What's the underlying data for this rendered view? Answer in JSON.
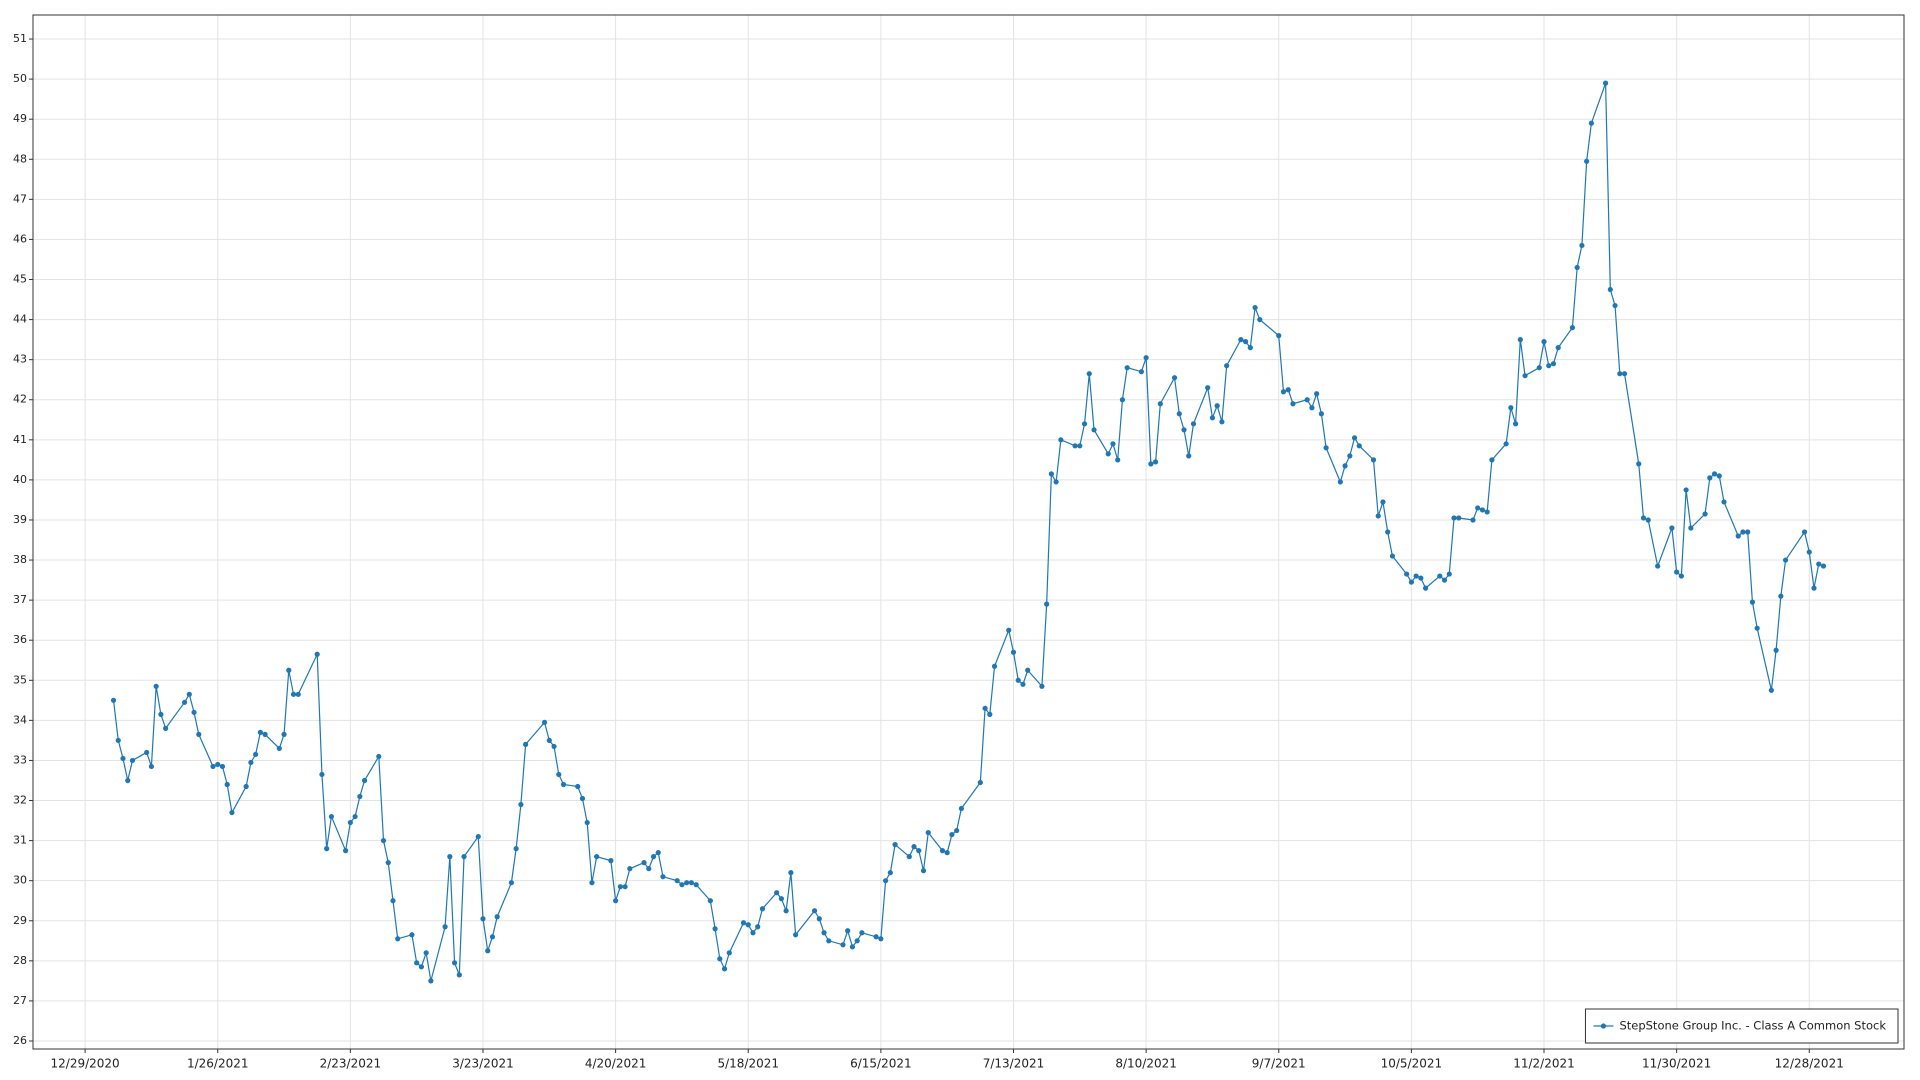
{
  "chart_data": {
    "type": "line",
    "x": [
      "1/4/2021",
      "1/5/2021",
      "1/6/2021",
      "1/7/2021",
      "1/8/2021",
      "1/11/2021",
      "1/12/2021",
      "1/13/2021",
      "1/14/2021",
      "1/15/2021",
      "1/19/2021",
      "1/20/2021",
      "1/21/2021",
      "1/22/2021",
      "1/25/2021",
      "1/26/2021",
      "1/27/2021",
      "1/28/2021",
      "1/29/2021",
      "2/1/2021",
      "2/2/2021",
      "2/3/2021",
      "2/4/2021",
      "2/5/2021",
      "2/8/2021",
      "2/9/2021",
      "2/10/2021",
      "2/11/2021",
      "2/12/2021",
      "2/16/2021",
      "2/17/2021",
      "2/18/2021",
      "2/19/2021",
      "2/22/2021",
      "2/23/2021",
      "2/24/2021",
      "2/25/2021",
      "2/26/2021",
      "3/1/2021",
      "3/2/2021",
      "3/3/2021",
      "3/4/2021",
      "3/5/2021",
      "3/8/2021",
      "3/9/2021",
      "3/10/2021",
      "3/11/2021",
      "3/12/2021",
      "3/15/2021",
      "3/16/2021",
      "3/17/2021",
      "3/18/2021",
      "3/19/2021",
      "3/22/2021",
      "3/23/2021",
      "3/24/2021",
      "3/25/2021",
      "3/26/2021",
      "3/29/2021",
      "3/30/2021",
      "3/31/2021",
      "4/1/2021",
      "4/5/2021",
      "4/6/2021",
      "4/7/2021",
      "4/8/2021",
      "4/9/2021",
      "4/12/2021",
      "4/13/2021",
      "4/14/2021",
      "4/15/2021",
      "4/16/2021",
      "4/19/2021",
      "4/20/2021",
      "4/21/2021",
      "4/22/2021",
      "4/23/2021",
      "4/26/2021",
      "4/27/2021",
      "4/28/2021",
      "4/29/2021",
      "4/30/2021",
      "5/3/2021",
      "5/4/2021",
      "5/5/2021",
      "5/6/2021",
      "5/7/2021",
      "5/10/2021",
      "5/11/2021",
      "5/12/2021",
      "5/13/2021",
      "5/14/2021",
      "5/17/2021",
      "5/18/2021",
      "5/19/2021",
      "5/20/2021",
      "5/21/2021",
      "5/24/2021",
      "5/25/2021",
      "5/26/2021",
      "5/27/2021",
      "5/28/2021",
      "6/1/2021",
      "6/2/2021",
      "6/3/2021",
      "6/4/2021",
      "6/7/2021",
      "6/8/2021",
      "6/9/2021",
      "6/10/2021",
      "6/11/2021",
      "6/14/2021",
      "6/15/2021",
      "6/16/2021",
      "6/17/2021",
      "6/18/2021",
      "6/21/2021",
      "6/22/2021",
      "6/23/2021",
      "6/24/2021",
      "6/25/2021",
      "6/28/2021",
      "6/29/2021",
      "6/30/2021",
      "7/1/2021",
      "7/2/2021",
      "7/6/2021",
      "7/7/2021",
      "7/8/2021",
      "7/9/2021",
      "7/12/2021",
      "7/13/2021",
      "7/14/2021",
      "7/15/2021",
      "7/16/2021",
      "7/19/2021",
      "7/20/2021",
      "7/21/2021",
      "7/22/2021",
      "7/23/2021",
      "7/26/2021",
      "7/27/2021",
      "7/28/2021",
      "7/29/2021",
      "7/30/2021",
      "8/2/2021",
      "8/3/2021",
      "8/4/2021",
      "8/5/2021",
      "8/6/2021",
      "8/9/2021",
      "8/10/2021",
      "8/11/2021",
      "8/12/2021",
      "8/13/2021",
      "8/16/2021",
      "8/17/2021",
      "8/18/2021",
      "8/19/2021",
      "8/20/2021",
      "8/23/2021",
      "8/24/2021",
      "8/25/2021",
      "8/26/2021",
      "8/27/2021",
      "8/30/2021",
      "8/31/2021",
      "9/1/2021",
      "9/2/2021",
      "9/3/2021",
      "9/7/2021",
      "9/8/2021",
      "9/9/2021",
      "9/10/2021",
      "9/13/2021",
      "9/14/2021",
      "9/15/2021",
      "9/16/2021",
      "9/17/2021",
      "9/20/2021",
      "9/21/2021",
      "9/22/2021",
      "9/23/2021",
      "9/24/2021",
      "9/27/2021",
      "9/28/2021",
      "9/29/2021",
      "9/30/2021",
      "10/1/2021",
      "10/4/2021",
      "10/5/2021",
      "10/6/2021",
      "10/7/2021",
      "10/8/2021",
      "10/11/2021",
      "10/12/2021",
      "10/13/2021",
      "10/14/2021",
      "10/15/2021",
      "10/18/2021",
      "10/19/2021",
      "10/20/2021",
      "10/21/2021",
      "10/22/2021",
      "10/25/2021",
      "10/26/2021",
      "10/27/2021",
      "10/28/2021",
      "10/29/2021",
      "11/1/2021",
      "11/2/2021",
      "11/3/2021",
      "11/4/2021",
      "11/5/2021",
      "11/8/2021",
      "11/9/2021",
      "11/10/2021",
      "11/11/2021",
      "11/12/2021",
      "11/15/2021",
      "11/16/2021",
      "11/17/2021",
      "11/18/2021",
      "11/19/2021",
      "11/22/2021",
      "11/23/2021",
      "11/24/2021",
      "11/26/2021",
      "11/29/2021",
      "11/30/2021",
      "12/1/2021",
      "12/2/2021",
      "12/3/2021",
      "12/6/2021",
      "12/7/2021",
      "12/8/2021",
      "12/9/2021",
      "12/10/2021",
      "12/13/2021",
      "12/14/2021",
      "12/15/2021",
      "12/16/2021",
      "12/17/2021",
      "12/20/2021",
      "12/21/2021",
      "12/22/2021",
      "12/23/2021",
      "12/27/2021",
      "12/28/2021",
      "12/29/2021",
      "12/30/2021",
      "12/31/2021"
    ],
    "series": [
      {
        "name": "StepStone Group Inc. - Class A Common Stock",
        "color": "#1f77b4",
        "values": [
          34.5,
          33.5,
          33.05,
          32.5,
          33.0,
          33.2,
          32.85,
          34.85,
          34.15,
          33.8,
          34.45,
          34.65,
          34.2,
          33.65,
          32.85,
          32.9,
          32.85,
          32.4,
          31.7,
          32.35,
          32.95,
          33.15,
          33.7,
          33.65,
          33.3,
          33.65,
          35.25,
          34.65,
          34.65,
          35.65,
          32.65,
          30.8,
          31.6,
          30.75,
          31.45,
          31.6,
          32.1,
          32.5,
          33.1,
          31.0,
          30.45,
          29.5,
          28.55,
          28.65,
          27.95,
          27.85,
          28.2,
          27.5,
          28.85,
          30.6,
          27.95,
          27.65,
          30.6,
          31.1,
          29.05,
          28.25,
          28.6,
          29.1,
          29.95,
          30.8,
          31.9,
          33.4,
          33.95,
          33.5,
          33.35,
          32.65,
          32.4,
          32.35,
          32.05,
          31.45,
          29.95,
          30.6,
          30.5,
          29.5,
          29.85,
          29.85,
          30.3,
          30.45,
          30.3,
          30.6,
          30.7,
          30.1,
          30.0,
          29.9,
          29.95,
          29.95,
          29.9,
          29.5,
          28.8,
          28.05,
          27.8,
          28.2,
          28.95,
          28.9,
          28.7,
          28.85,
          29.3,
          29.7,
          29.55,
          29.25,
          30.2,
          28.65,
          29.25,
          29.05,
          28.7,
          28.5,
          28.4,
          28.75,
          28.35,
          28.5,
          28.7,
          28.6,
          28.55,
          30.0,
          30.2,
          30.9,
          30.6,
          30.85,
          30.75,
          30.25,
          31.2,
          30.75,
          30.7,
          31.15,
          31.25,
          31.8,
          32.45,
          34.3,
          34.15,
          35.35,
          36.25,
          35.7,
          35.0,
          34.9,
          35.25,
          34.85,
          36.9,
          40.15,
          39.95,
          41.0,
          40.85,
          40.85,
          41.4,
          42.65,
          41.25,
          40.65,
          40.9,
          40.5,
          42.0,
          42.8,
          42.7,
          43.05,
          40.4,
          40.45,
          41.9,
          42.55,
          41.65,
          41.25,
          40.6,
          41.4,
          42.3,
          41.55,
          41.85,
          41.45,
          42.85,
          43.5,
          43.45,
          43.3,
          44.3,
          44.0,
          43.6,
          42.2,
          42.25,
          41.9,
          42.0,
          41.8,
          42.15,
          41.65,
          40.8,
          39.95,
          40.35,
          40.6,
          41.05,
          40.85,
          40.5,
          39.1,
          39.45,
          38.7,
          38.1,
          37.65,
          37.45,
          37.6,
          37.55,
          37.3,
          37.6,
          37.5,
          37.65,
          39.05,
          39.05,
          39.0,
          39.3,
          39.25,
          39.2,
          40.5,
          40.9,
          41.8,
          41.4,
          43.5,
          42.6,
          42.8,
          43.45,
          42.85,
          42.9,
          43.3,
          43.8,
          45.3,
          45.85,
          47.95,
          48.9,
          49.9,
          44.75,
          44.35,
          42.65,
          42.65,
          40.4,
          39.05,
          39.0,
          37.85,
          38.8,
          37.7,
          37.6,
          39.75,
          38.8,
          39.15,
          40.05,
          40.15,
          40.1,
          39.45,
          38.6,
          38.7,
          38.7,
          36.95,
          36.3,
          34.75,
          35.75,
          37.1,
          38.0,
          38.7,
          38.2,
          37.3,
          37.9,
          37.85
        ]
      }
    ],
    "xlim": [
      "12/18/2020",
      "1/17/2022"
    ],
    "xticks": [
      "12/29/2020",
      "1/26/2021",
      "2/23/2021",
      "3/23/2021",
      "4/20/2021",
      "5/18/2021",
      "6/15/2021",
      "7/13/2021",
      "8/10/2021",
      "9/7/2021",
      "10/5/2021",
      "11/2/2021",
      "11/30/2021",
      "12/28/2021"
    ],
    "ylim": [
      25.8,
      51.6
    ],
    "yticks": [
      26,
      27,
      28,
      29,
      30,
      31,
      32,
      33,
      34,
      35,
      36,
      37,
      38,
      39,
      40,
      41,
      42,
      43,
      44,
      45,
      46,
      47,
      48,
      49,
      50,
      51
    ],
    "grid": true,
    "legend": "lower right"
  }
}
